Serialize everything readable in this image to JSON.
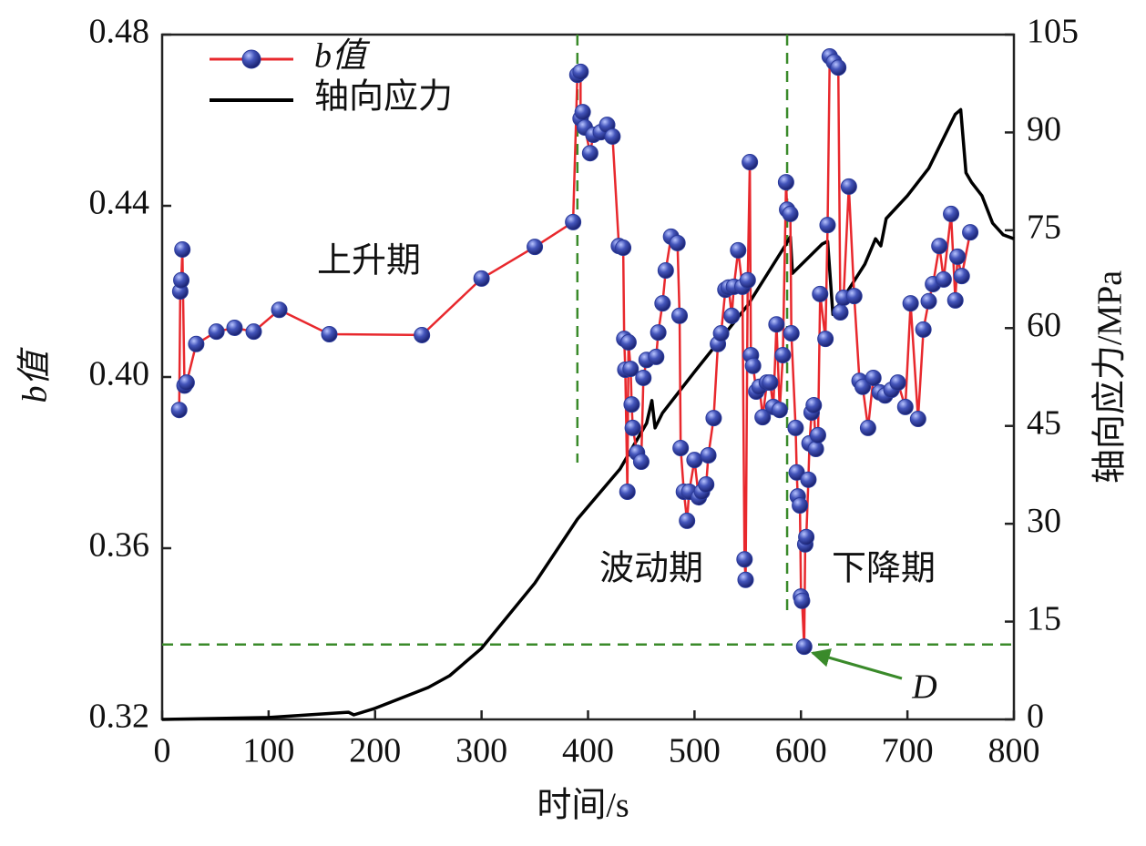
{
  "chart_data": {
    "type": "line",
    "xlabel": "时间/s",
    "ylabel": "b值",
    "y2label": "轴向应力/MPa",
    "xlim": [
      0,
      800
    ],
    "xticks": [
      0,
      100,
      200,
      300,
      400,
      500,
      600,
      700,
      800
    ],
    "ylim": [
      0.32,
      0.48
    ],
    "yticks": [
      0.32,
      0.36,
      {
        "value": 0.4,
        "label": "0.40"
      },
      0.44,
      0.48
    ],
    "y2lim": [
      0,
      105
    ],
    "y2ticks": [
      0,
      15,
      30,
      45,
      60,
      75,
      90,
      105
    ],
    "legend": "top-left",
    "series": [
      {
        "name": "b值",
        "color": "#e8282d",
        "marker_color": "#2a3a9a",
        "x": [
          16,
          17,
          18,
          19,
          21,
          23,
          32,
          51,
          68,
          86,
          110,
          157,
          244,
          300,
          350,
          386,
          390,
          393,
          393,
          395,
          397,
          402,
          405,
          412,
          418,
          423,
          429,
          433,
          434,
          435,
          437,
          438,
          440,
          441,
          442,
          446,
          450,
          452,
          455,
          464,
          466,
          470,
          473,
          478,
          484,
          486,
          487,
          490,
          493,
          495,
          500,
          504,
          507,
          511,
          513,
          518,
          522,
          525,
          529,
          532,
          535,
          537,
          541,
          545,
          547,
          548,
          550,
          552,
          553,
          555,
          558,
          561,
          564,
          568,
          571,
          574,
          577,
          580,
          583,
          586,
          587,
          590,
          591,
          595,
          596,
          597,
          599,
          600,
          601,
          603,
          604,
          605,
          607,
          608,
          610,
          612,
          614,
          616,
          618,
          623,
          625,
          627,
          631,
          635,
          637,
          640,
          645,
          650,
          655,
          658,
          663,
          668,
          674,
          679,
          685,
          691,
          698,
          703,
          710,
          715,
          720,
          724,
          730,
          734,
          741,
          745,
          747,
          751,
          759
        ],
        "values": [
          0.3923,
          0.42,
          0.4226,
          0.4298,
          0.398,
          0.3987,
          0.4077,
          0.4106,
          0.4115,
          0.4106,
          0.4157,
          0.41,
          0.4098,
          0.423,
          0.4304,
          0.4362,
          0.4706,
          0.4713,
          0.4604,
          0.4619,
          0.4583,
          0.4523,
          0.4566,
          0.4572,
          0.4589,
          0.4562,
          0.4306,
          0.4302,
          0.4089,
          0.4017,
          0.3732,
          0.4081,
          0.4019,
          0.3936,
          0.3881,
          0.3823,
          0.3802,
          0.3998,
          0.404,
          0.4047,
          0.4104,
          0.4172,
          0.4249,
          0.4328,
          0.4313,
          0.4143,
          0.3834,
          0.3732,
          0.3664,
          0.3732,
          0.3806,
          0.3719,
          0.3732,
          0.3749,
          0.3817,
          0.3904,
          0.4077,
          0.4102,
          0.4204,
          0.4209,
          0.4143,
          0.4211,
          0.4296,
          0.4211,
          0.3574,
          0.3526,
          0.4226,
          0.4502,
          0.4051,
          0.4026,
          0.3966,
          0.3977,
          0.3906,
          0.3987,
          0.3987,
          0.393,
          0.4123,
          0.3923,
          0.4051,
          0.4455,
          0.4391,
          0.4381,
          0.4102,
          0.3881,
          0.3777,
          0.3721,
          0.37,
          0.3487,
          0.3477,
          0.337,
          0.3609,
          0.3626,
          0.376,
          0.3845,
          0.3917,
          0.3934,
          0.3832,
          0.3864,
          0.4194,
          0.4089,
          0.4355,
          0.4749,
          0.4736,
          0.4723,
          0.4151,
          0.4185,
          0.4445,
          0.4189,
          0.3991,
          0.3977,
          0.3881,
          0.3998,
          0.3964,
          0.3957,
          0.397,
          0.3987,
          0.393,
          0.4172,
          0.3902,
          0.4111,
          0.4177,
          0.4217,
          0.4306,
          0.4228,
          0.4381,
          0.4179,
          0.4281,
          0.4236,
          0.4338
        ]
      },
      {
        "name": "轴向应力",
        "color": "#000000",
        "axis": "y2",
        "x": [
          0,
          100,
          175,
          180,
          200,
          250,
          270,
          300,
          350,
          390,
          430,
          455,
          460,
          463,
          470,
          500,
          550,
          585,
          590,
          592,
          620,
          625,
          630,
          660,
          670,
          675,
          680,
          700,
          720,
          745,
          750,
          755,
          760,
          770,
          780,
          790,
          800
        ],
        "values": [
          0,
          0.3,
          1.1,
          0.7,
          1.7,
          4.9,
          6.7,
          10.9,
          20.9,
          30.7,
          38.4,
          45.4,
          48.9,
          44.7,
          47,
          53.3,
          63.5,
          72.6,
          74,
          68.4,
          72.9,
          73.3,
          62.1,
          69.8,
          73.7,
          72.6,
          76.8,
          80.3,
          84.5,
          92.8,
          93.5,
          83.8,
          82.4,
          80.3,
          76.1,
          74.3,
          73.7
        ]
      }
    ],
    "vlines": [
      390,
      587
    ],
    "hline": 0.3375,
    "reference_color": "#3a8a2a",
    "annotations": [
      "上升期",
      "波动期",
      "下降期",
      "D"
    ]
  }
}
